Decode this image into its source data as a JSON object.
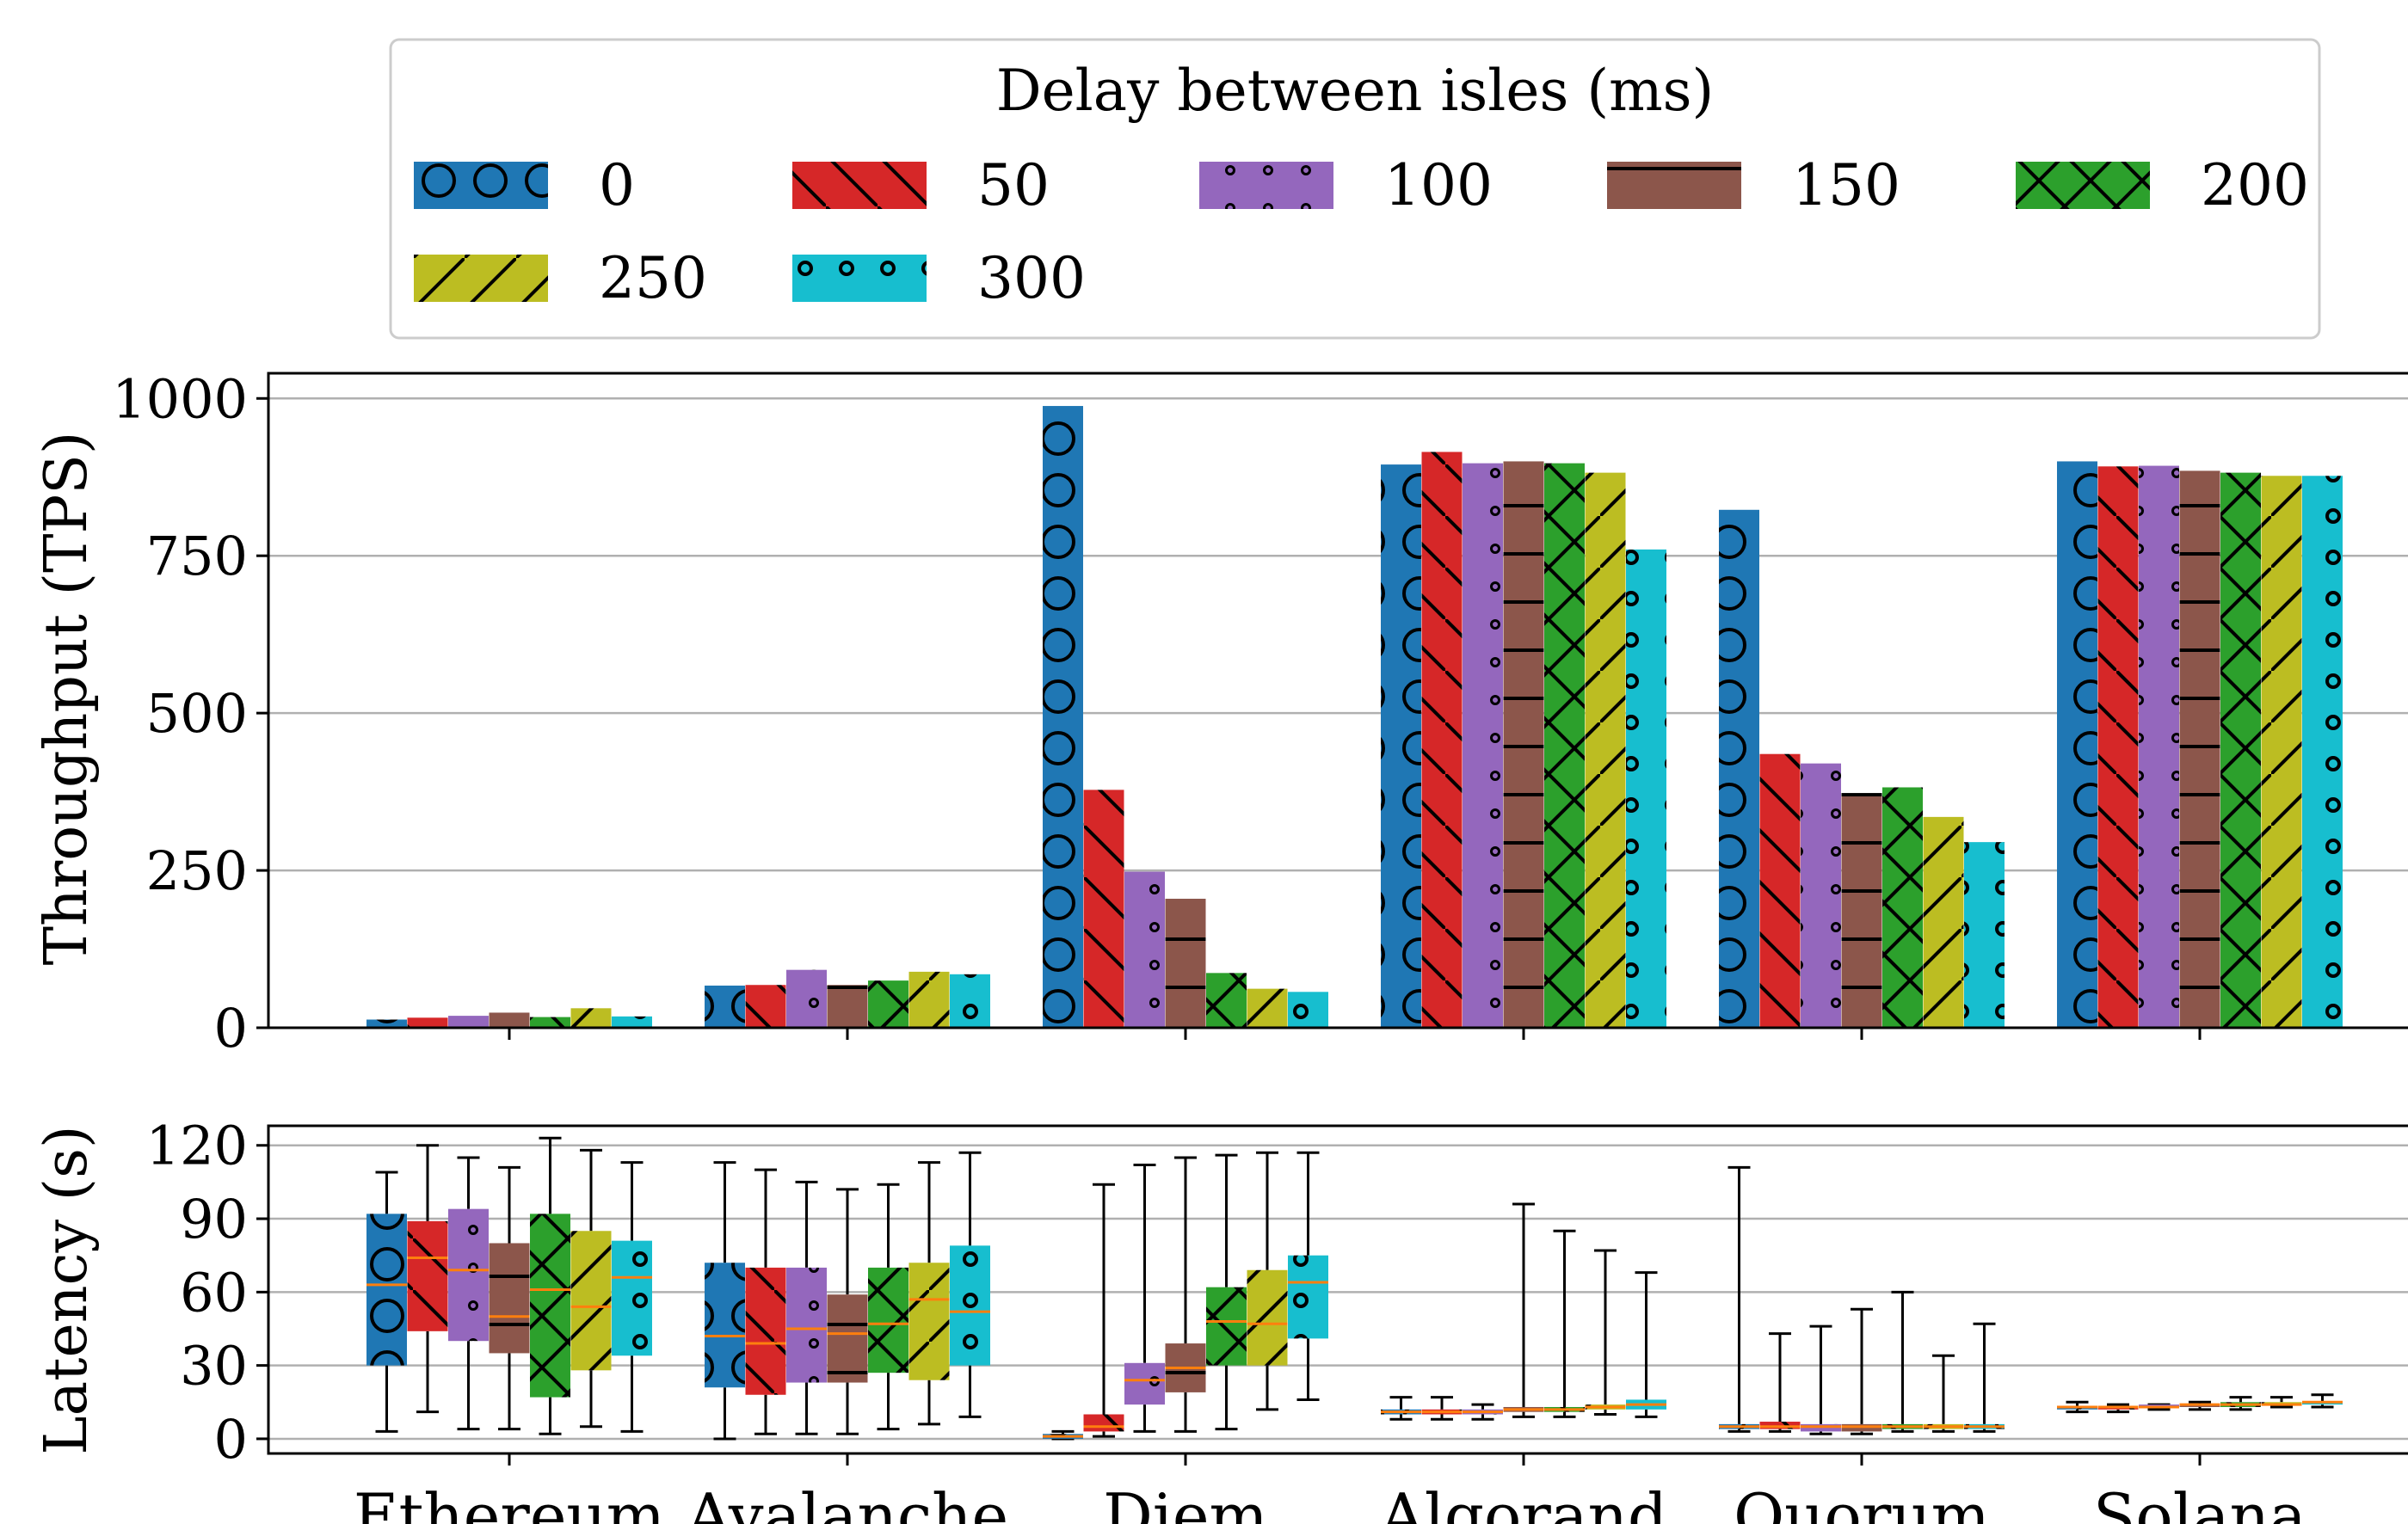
{
  "chart_data": [
    {
      "type": "bar",
      "ylabel": "Throughput (TPS)",
      "ylim": [
        0,
        1040
      ],
      "yticks": [
        0,
        250,
        500,
        750,
        1000
      ],
      "grid": "horizontal",
      "categories": [
        "Ethereum",
        "Avalanche",
        "Diem",
        "Algorand",
        "Quorum",
        "Solana"
      ],
      "series": [
        {
          "name": "0",
          "color": "#1f77b4",
          "pattern": "large-circles",
          "values": [
            13,
            67,
            988,
            895,
            823,
            900
          ]
        },
        {
          "name": "50",
          "color": "#d62728",
          "pattern": "backslash",
          "values": [
            16,
            68,
            378,
            915,
            435,
            892
          ]
        },
        {
          "name": "100",
          "color": "#9467bd",
          "pattern": "small-dots",
          "values": [
            19,
            92,
            248,
            897,
            420,
            893
          ]
        },
        {
          "name": "150",
          "color": "#8c564b",
          "pattern": "horizontal",
          "values": [
            24,
            68,
            205,
            900,
            373,
            885
          ]
        },
        {
          "name": "200",
          "color": "#2ca02c",
          "pattern": "cross",
          "values": [
            17,
            75,
            87,
            897,
            382,
            882
          ]
        },
        {
          "name": "250",
          "color": "#bcbd22",
          "pattern": "slash",
          "values": [
            31,
            89,
            62,
            882,
            335,
            877
          ]
        },
        {
          "name": "300",
          "color": "#17becf",
          "pattern": "circles",
          "values": [
            18,
            85,
            57,
            760,
            295,
            877
          ]
        }
      ],
      "legend": {
        "title": "Delay between isles (ms)",
        "placement": "top",
        "columns": 5
      }
    },
    {
      "type": "box",
      "ylabel": "Latency (s)",
      "ylim": [
        -6,
        128
      ],
      "yticks": [
        0,
        30,
        60,
        90,
        120
      ],
      "grid": "horizontal",
      "categories": [
        "Ethereum",
        "Avalanche",
        "Diem",
        "Algorand",
        "Quorum",
        "Solana"
      ],
      "series": [
        {
          "name": "0",
          "boxes": [
            [
              3,
              30,
              63,
              92,
              109
            ],
            [
              0,
              21,
              42,
              72,
              113
            ],
            [
              0,
              0,
              1,
              2,
              3
            ],
            [
              8,
              10,
              11,
              12,
              17
            ],
            [
              3,
              4,
              5,
              6,
              111
            ],
            [
              11,
              12,
              13,
              13,
              15
            ]
          ]
        },
        {
          "name": "50",
          "boxes": [
            [
              11,
              44,
              74,
              89,
              120
            ],
            [
              2,
              18,
              39,
              70,
              110
            ],
            [
              1,
              3,
              5,
              10,
              104
            ],
            [
              8,
              10,
              11,
              12,
              17
            ],
            [
              3,
              4,
              5,
              7,
              43
            ],
            [
              11,
              12,
              13,
              13,
              14
            ]
          ]
        },
        {
          "name": "100",
          "boxes": [
            [
              4,
              40,
              69,
              94,
              115
            ],
            [
              2,
              23,
              45,
              70,
              105
            ],
            [
              3,
              14,
              24,
              31,
              112
            ],
            [
              8,
              10,
              11,
              12,
              14
            ],
            [
              2,
              3,
              5,
              6,
              46
            ],
            [
              12,
              13,
              13,
              14,
              14
            ]
          ]
        },
        {
          "name": "150",
          "boxes": [
            [
              4,
              35,
              50,
              80,
              111
            ],
            [
              2,
              23,
              43,
              59,
              102
            ],
            [
              3,
              19,
              29,
              39,
              115
            ],
            [
              9,
              11,
              12,
              13,
              96
            ],
            [
              2,
              3,
              5,
              6,
              53
            ],
            [
              12,
              13,
              14,
              14,
              15
            ]
          ]
        },
        {
          "name": "200",
          "boxes": [
            [
              2,
              17,
              61,
              92,
              123
            ],
            [
              4,
              27,
              47,
              70,
              104
            ],
            [
              4,
              30,
              48,
              62,
              116
            ],
            [
              9,
              11,
              12,
              13,
              85
            ],
            [
              3,
              4,
              5,
              6,
              60
            ],
            [
              12,
              13,
              14,
              15,
              17
            ]
          ]
        },
        {
          "name": "250",
          "boxes": [
            [
              5,
              28,
              54,
              85,
              118
            ],
            [
              6,
              24,
              57,
              72,
              113
            ],
            [
              12,
              30,
              47,
              69,
              117
            ],
            [
              10,
              12,
              13,
              14,
              77
            ],
            [
              3,
              4,
              5,
              6,
              34
            ],
            [
              13,
              14,
              14,
              15,
              17
            ]
          ]
        },
        {
          "name": "300",
          "boxes": [
            [
              3,
              34,
              66,
              81,
              113
            ],
            [
              9,
              30,
              52,
              79,
              117
            ],
            [
              16,
              41,
              64,
              75,
              117
            ],
            [
              9,
              12,
              14,
              16,
              68
            ],
            [
              3,
              4,
              5,
              6,
              47
            ],
            [
              13,
              14,
              15,
              15,
              18
            ]
          ]
        }
      ]
    }
  ]
}
